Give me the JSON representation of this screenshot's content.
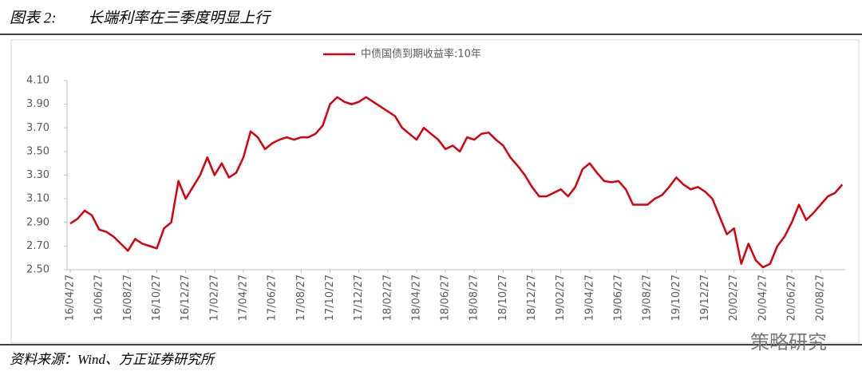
{
  "header": {
    "title": "图表 2:",
    "subtitle": "长端利率在三季度明显上行"
  },
  "footer": {
    "source": "资料来源：Wind、方正证券研究所",
    "watermark": "策略研究"
  },
  "chart_data": {
    "type": "line",
    "categories": [
      "16/04/27",
      null,
      null,
      null,
      "16/06/27",
      null,
      null,
      null,
      "16/08/27",
      null,
      null,
      null,
      "16/10/27",
      null,
      null,
      null,
      "16/12/27",
      null,
      null,
      null,
      "17/02/27",
      null,
      null,
      null,
      "17/04/27",
      null,
      null,
      null,
      "17/06/27",
      null,
      null,
      null,
      "17/08/27",
      null,
      null,
      null,
      "17/10/27",
      null,
      null,
      null,
      "17/12/27",
      null,
      null,
      null,
      "18/02/27",
      null,
      null,
      null,
      "18/04/27",
      null,
      null,
      null,
      "18/06/27",
      null,
      null,
      null,
      "18/08/27",
      null,
      null,
      null,
      "18/10/27",
      null,
      null,
      null,
      "18/12/27",
      null,
      null,
      null,
      "19/02/27",
      null,
      null,
      null,
      "19/04/27",
      null,
      null,
      null,
      "19/06/27",
      null,
      null,
      null,
      "19/08/27",
      null,
      null,
      null,
      "19/10/27",
      null,
      null,
      null,
      "19/12/27",
      null,
      null,
      null,
      "20/02/27",
      null,
      null,
      null,
      "20/04/27",
      null,
      null,
      null,
      "20/06/27",
      null,
      null,
      null,
      "20/08/27",
      null,
      null,
      null
    ],
    "series": [
      {
        "name": "中债国债到期收益率:10年",
        "color": "#d9000d",
        "values": [
          2.89,
          2.93,
          3.0,
          2.96,
          2.84,
          2.82,
          2.78,
          2.72,
          2.66,
          2.76,
          2.72,
          2.7,
          2.68,
          2.85,
          2.9,
          3.25,
          3.1,
          3.2,
          3.3,
          3.45,
          3.3,
          3.4,
          3.28,
          3.32,
          3.45,
          3.67,
          3.62,
          3.52,
          3.57,
          3.6,
          3.62,
          3.6,
          3.62,
          3.62,
          3.65,
          3.72,
          3.9,
          3.96,
          3.92,
          3.9,
          3.92,
          3.96,
          3.92,
          3.88,
          3.84,
          3.8,
          3.7,
          3.65,
          3.6,
          3.7,
          3.65,
          3.6,
          3.52,
          3.55,
          3.5,
          3.62,
          3.6,
          3.65,
          3.66,
          3.6,
          3.55,
          3.45,
          3.38,
          3.3,
          3.2,
          3.12,
          3.12,
          3.15,
          3.18,
          3.12,
          3.2,
          3.35,
          3.4,
          3.32,
          3.25,
          3.24,
          3.25,
          3.18,
          3.05,
          3.05,
          3.05,
          3.1,
          3.13,
          3.2,
          3.28,
          3.22,
          3.18,
          3.2,
          3.16,
          3.1,
          2.95,
          2.8,
          2.85,
          2.55,
          2.72,
          2.58,
          2.52,
          2.55,
          2.7,
          2.78,
          2.9,
          3.05,
          2.92,
          2.98,
          3.05,
          3.12,
          3.15,
          3.22
        ]
      }
    ],
    "ylim": [
      2.5,
      4.1
    ],
    "yticks": [
      {
        "value": 2.5,
        "label": "2.50"
      },
      {
        "value": 2.7,
        "label": "2.70"
      },
      {
        "value": 2.9,
        "label": "2.90"
      },
      {
        "value": 3.1,
        "label": "3.10"
      },
      {
        "value": 3.3,
        "label": "3.30"
      },
      {
        "value": 3.5,
        "label": "3.50"
      },
      {
        "value": 3.7,
        "label": "3.70"
      },
      {
        "value": 3.9,
        "label": "3.90"
      },
      {
        "value": 4.1,
        "label": "4.10"
      }
    ],
    "grid": false,
    "legend": "top"
  }
}
